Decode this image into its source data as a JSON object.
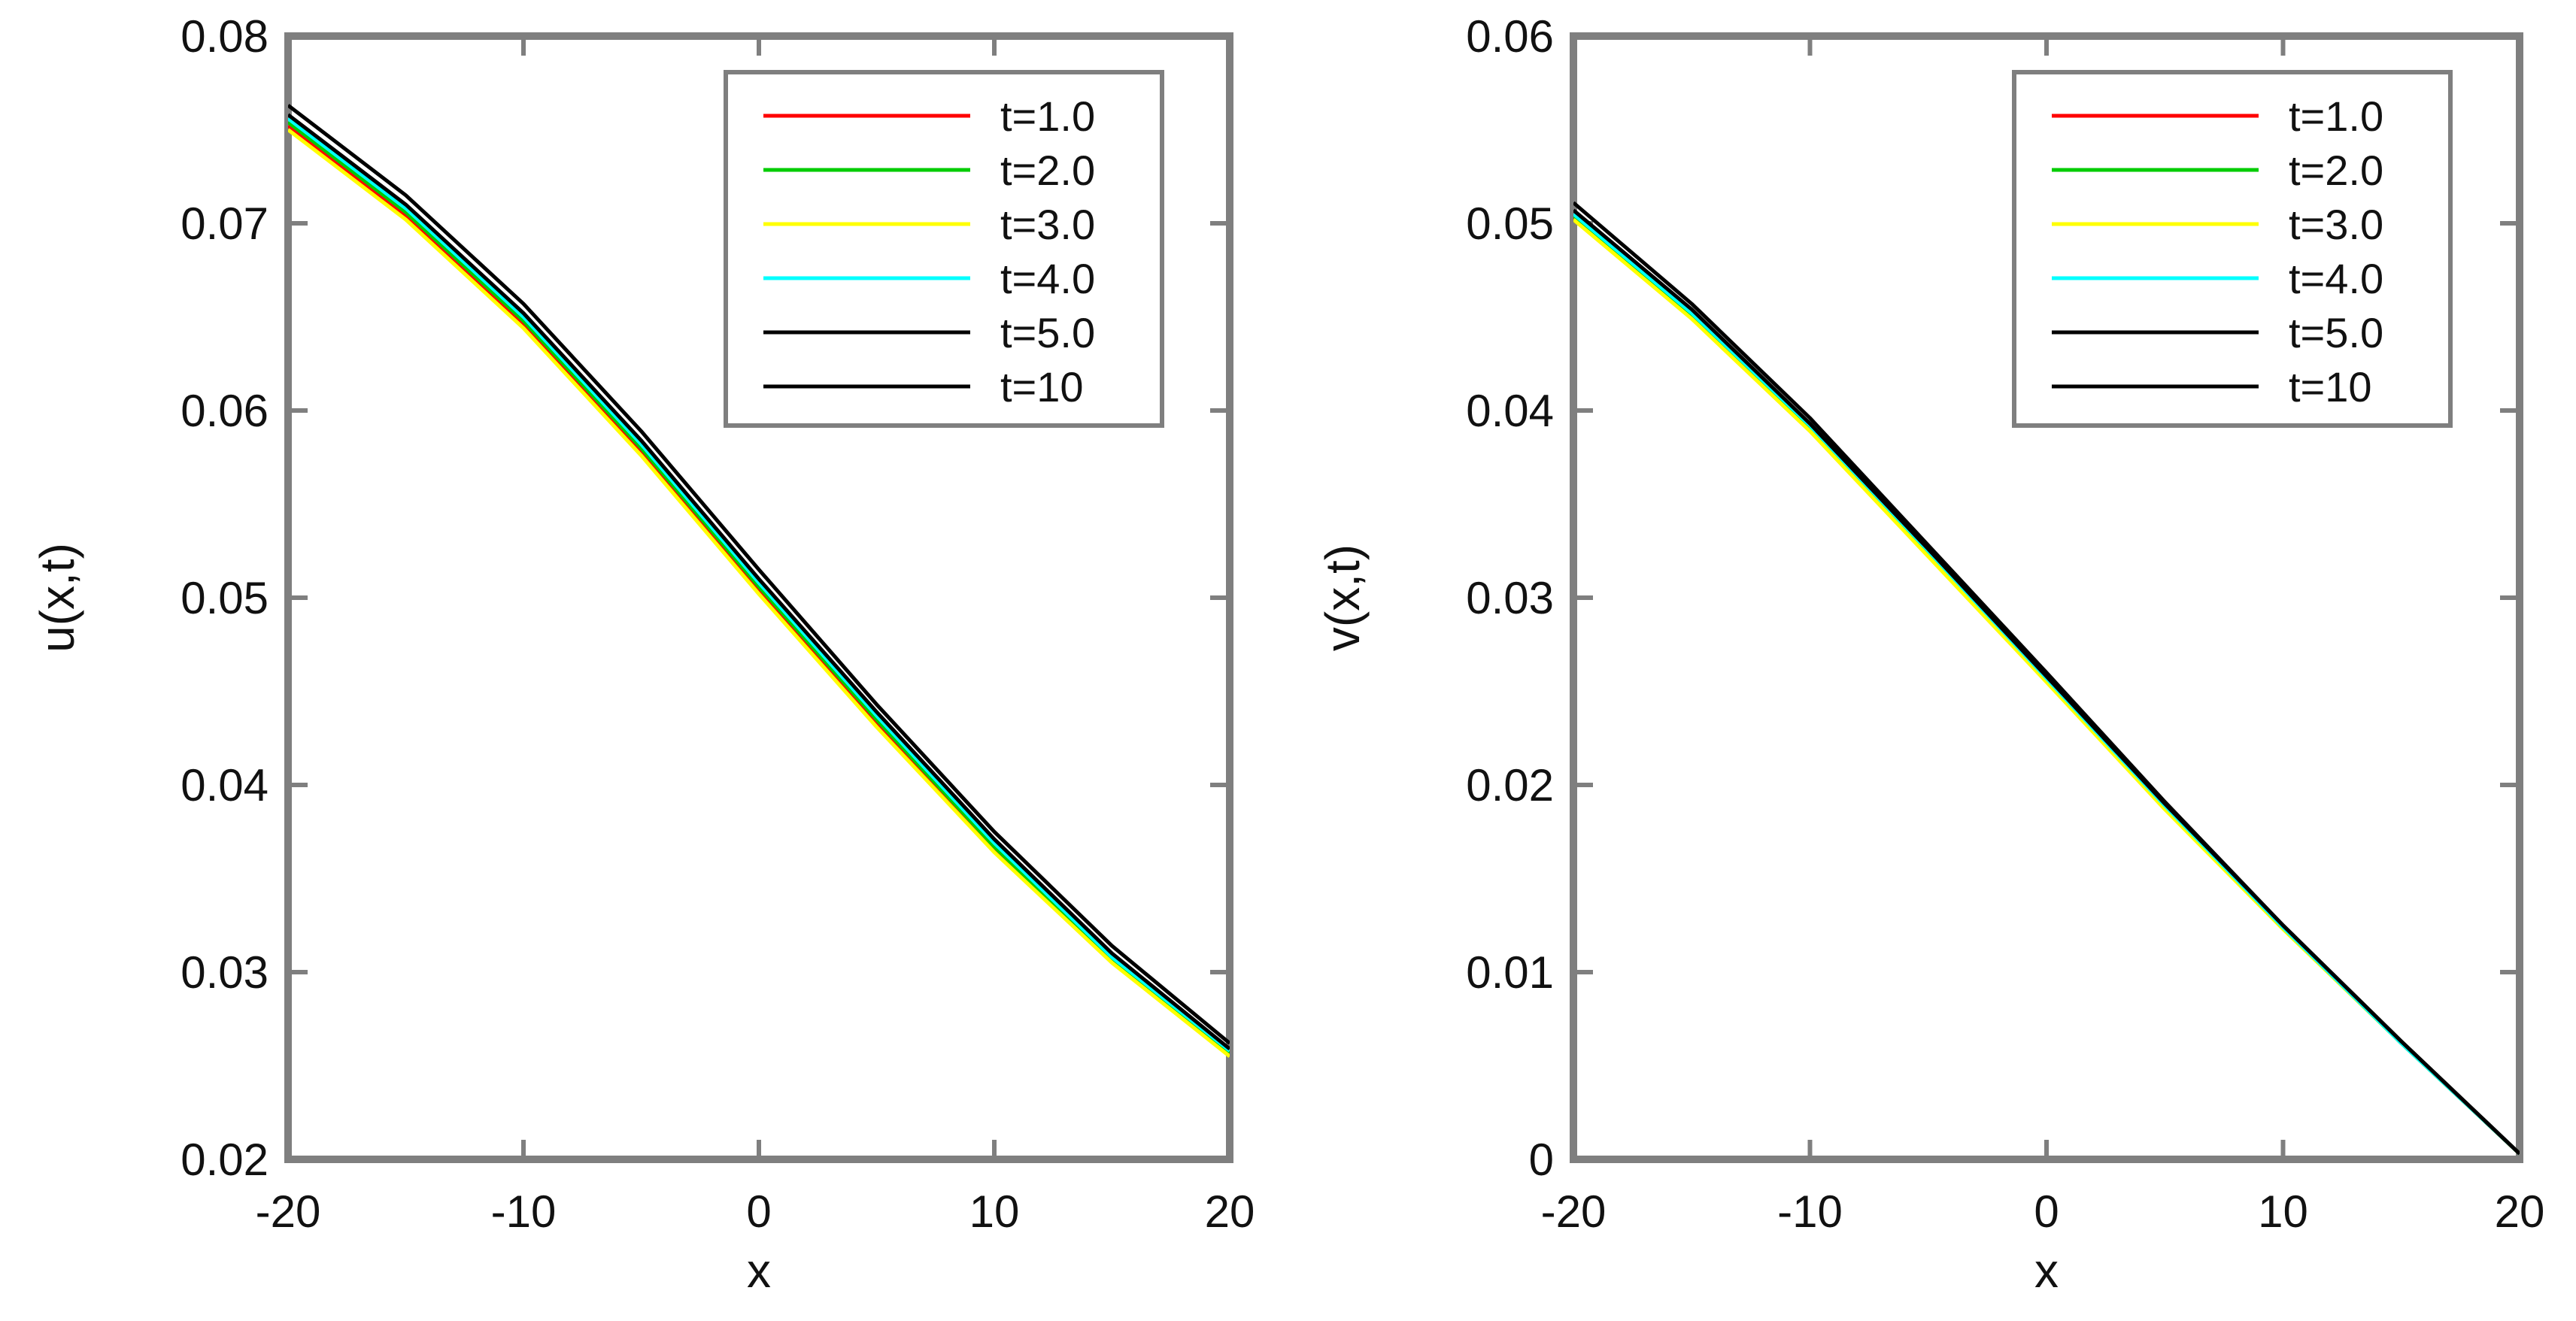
{
  "chart_data": [
    {
      "type": "line",
      "title": "",
      "xlabel": "x",
      "ylabel": "u(x,t)",
      "xlim": [
        -20,
        20
      ],
      "ylim": [
        0.02,
        0.08
      ],
      "xticks": [
        -20,
        -10,
        0,
        10,
        20
      ],
      "xtick_labels": [
        "-20",
        "-10",
        "0",
        "10",
        "20"
      ],
      "yticks": [
        0.02,
        0.03,
        0.04,
        0.05,
        0.06,
        0.07,
        0.08
      ],
      "ytick_labels": [
        "0.02",
        "0.03",
        "0.04",
        "0.05",
        "0.06",
        "0.07",
        "0.08"
      ],
      "grid": false,
      "legend_position": "top-right",
      "x": [
        -20,
        -15,
        -10,
        -5,
        0,
        5,
        10,
        15,
        20
      ],
      "series": [
        {
          "name": "t=1.0",
          "color": "#ff0000",
          "values": [
            0.0752,
            0.0704,
            0.0646,
            0.0578,
            0.0504,
            0.0433,
            0.0366,
            0.0306,
            0.0256
          ]
        },
        {
          "name": "t=2.0",
          "color": "#00cc00",
          "values": [
            0.0754,
            0.0706,
            0.0648,
            0.058,
            0.0506,
            0.0435,
            0.0367,
            0.0307,
            0.0257
          ]
        },
        {
          "name": "t=3.0",
          "color": "#ffff00",
          "values": [
            0.075,
            0.0702,
            0.0644,
            0.0576,
            0.0502,
            0.0431,
            0.0364,
            0.0305,
            0.0255
          ]
        },
        {
          "name": "t=4.0",
          "color": "#00ffff",
          "values": [
            0.0756,
            0.0708,
            0.065,
            0.0582,
            0.0508,
            0.0437,
            0.0369,
            0.0308,
            0.0258
          ]
        },
        {
          "name": "t=5.0",
          "color": "#000000",
          "values": [
            0.0758,
            0.071,
            0.0652,
            0.0584,
            0.051,
            0.0439,
            0.0371,
            0.031,
            0.0259
          ]
        },
        {
          "name": "t=10",
          "color": "#000000",
          "values": [
            0.0763,
            0.0715,
            0.0657,
            0.0589,
            0.0515,
            0.0443,
            0.0375,
            0.0314,
            0.0262
          ]
        }
      ]
    },
    {
      "type": "line",
      "title": "",
      "xlabel": "x",
      "ylabel": "v(x,t)",
      "xlim": [
        -20,
        20
      ],
      "ylim": [
        0,
        0.06
      ],
      "xticks": [
        -20,
        -10,
        0,
        10,
        20
      ],
      "xtick_labels": [
        "-20",
        "-10",
        "0",
        "10",
        "20"
      ],
      "yticks": [
        0,
        0.01,
        0.02,
        0.03,
        0.04,
        0.05,
        0.06
      ],
      "ytick_labels": [
        "0",
        "0.01",
        "0.02",
        "0.03",
        "0.04",
        "0.05",
        "0.06"
      ],
      "grid": false,
      "legend_position": "top-right",
      "x": [
        -20,
        -15,
        -10,
        -5,
        0,
        5,
        10,
        15,
        20
      ],
      "series": [
        {
          "name": "t=1.0",
          "color": "#ff0000",
          "values": [
            0.0503,
            0.045,
            0.039,
            0.0323,
            0.0256,
            0.0188,
            0.0124,
            0.0062,
            0.0003
          ]
        },
        {
          "name": "t=2.0",
          "color": "#00cc00",
          "values": [
            0.0504,
            0.0451,
            0.0391,
            0.0324,
            0.0256,
            0.0188,
            0.0124,
            0.0062,
            0.0003
          ]
        },
        {
          "name": "t=3.0",
          "color": "#ffff00",
          "values": [
            0.0502,
            0.0449,
            0.0389,
            0.0322,
            0.0255,
            0.0187,
            0.0123,
            0.0062,
            0.0003
          ]
        },
        {
          "name": "t=4.0",
          "color": "#00ffff",
          "values": [
            0.0505,
            0.0452,
            0.0392,
            0.0325,
            0.0257,
            0.0189,
            0.0124,
            0.0062,
            0.0003
          ]
        },
        {
          "name": "t=5.0",
          "color": "#000000",
          "values": [
            0.0507,
            0.0454,
            0.0393,
            0.0326,
            0.0258,
            0.019,
            0.0125,
            0.0063,
            0.0003
          ]
        },
        {
          "name": "t=10",
          "color": "#000000",
          "values": [
            0.0511,
            0.0457,
            0.0396,
            0.0328,
            0.026,
            0.0191,
            0.0125,
            0.0063,
            0.0003
          ]
        }
      ]
    }
  ],
  "colors": {
    "frame": "#7f7f7f",
    "background": "#ffffff",
    "text": "#111111"
  }
}
